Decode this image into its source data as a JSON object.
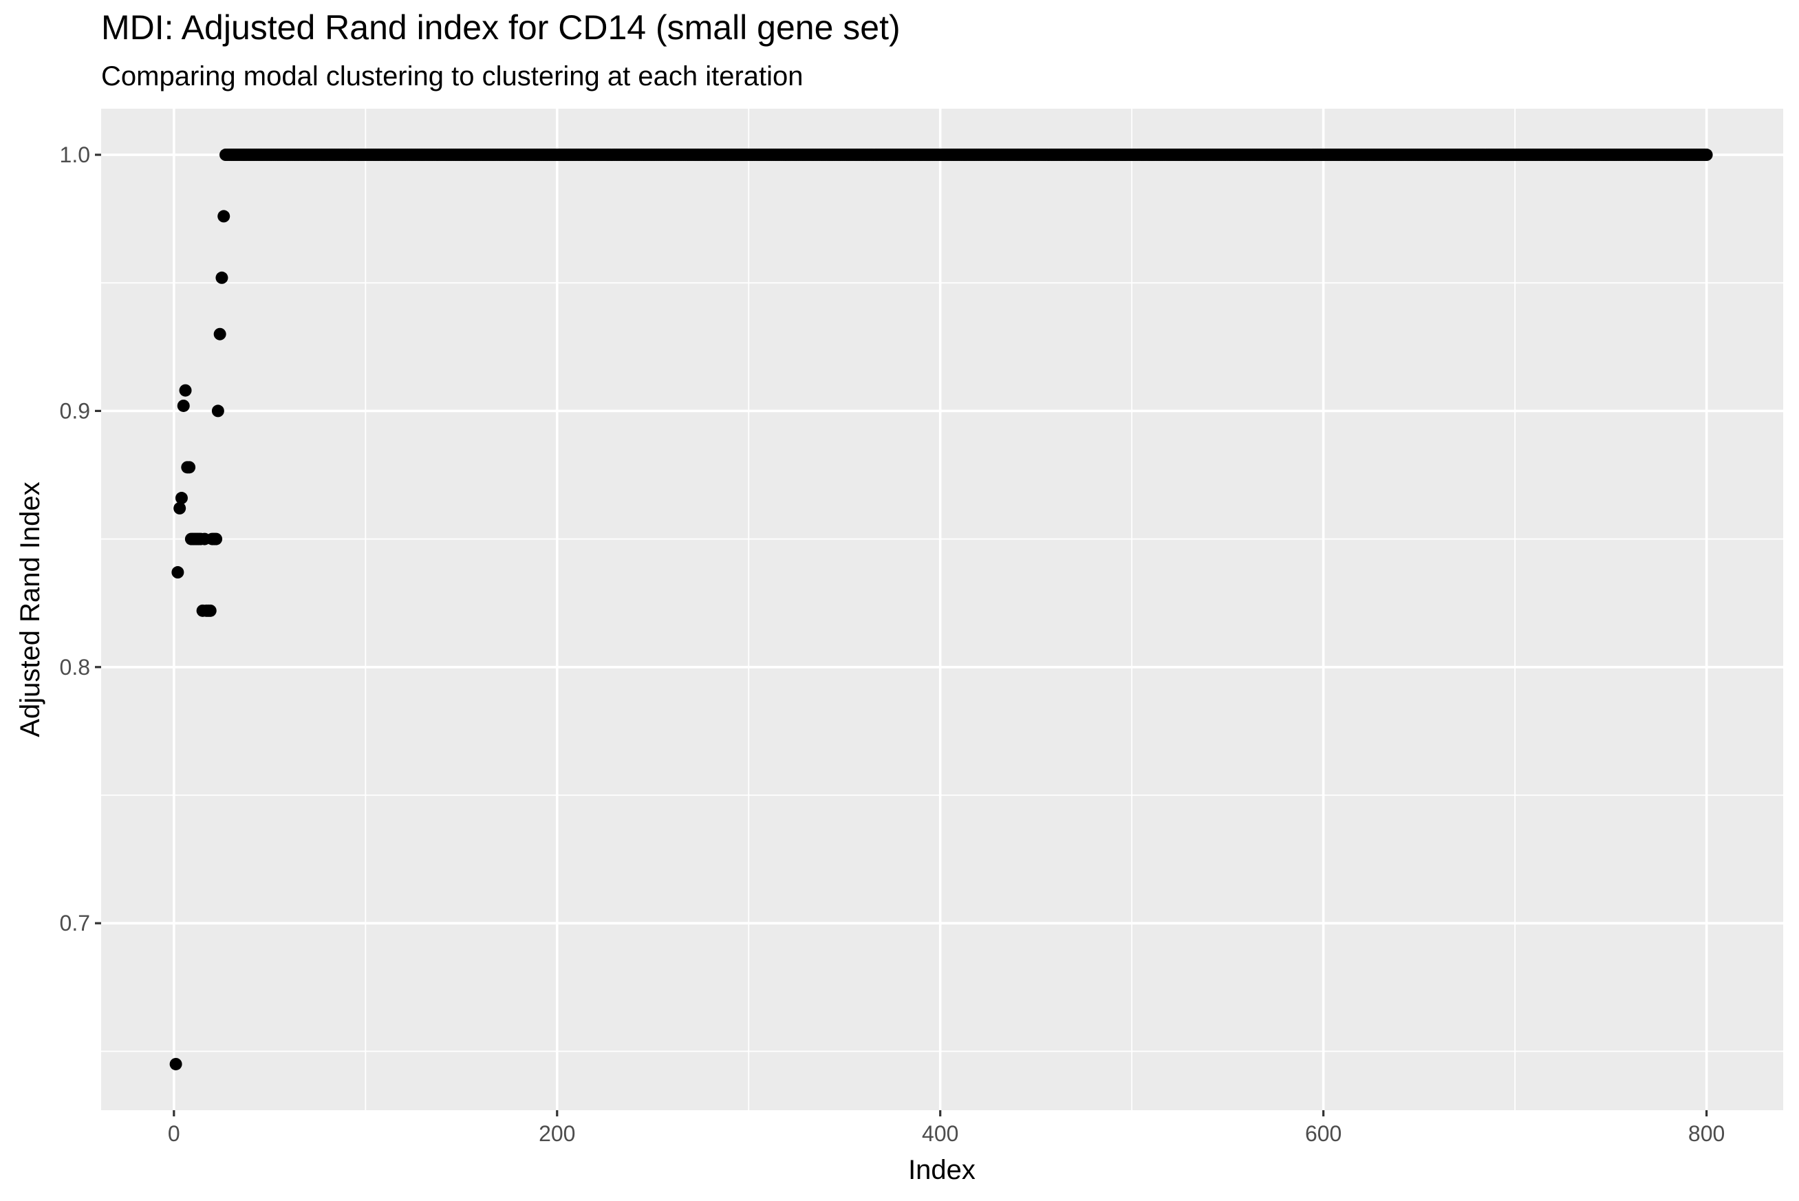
{
  "chart_data": {
    "type": "scatter",
    "title": "MDI: Adjusted Rand index for CD14 (small gene set)",
    "subtitle": "Comparing modal clustering to clustering at each iteration",
    "xlabel": "Index",
    "ylabel": "Adjusted Rand Index",
    "xlim": [
      -38,
      840
    ],
    "ylim": [
      0.627,
      1.018
    ],
    "x_ticks": [
      0,
      200,
      400,
      600,
      800
    ],
    "x_tick_labels": [
      "0",
      "200",
      "400",
      "600",
      "800"
    ],
    "x_minor_ticks": [
      100,
      300,
      500,
      700
    ],
    "y_ticks": [
      0.7,
      0.8,
      0.9,
      1.0
    ],
    "y_tick_labels": [
      "0.7",
      "0.8",
      "0.9",
      "1.0"
    ],
    "y_minor_ticks": [
      0.65,
      0.75,
      0.85,
      0.95
    ],
    "grid": true,
    "legend": "none",
    "point_color": "#000000",
    "background_color": "#ebebeb",
    "gridline_color": "#ffffff",
    "points": [
      {
        "x": 1,
        "y": 0.645
      },
      {
        "x": 2,
        "y": 0.837
      },
      {
        "x": 3,
        "y": 0.862
      },
      {
        "x": 4,
        "y": 0.866
      },
      {
        "x": 5,
        "y": 0.902
      },
      {
        "x": 6,
        "y": 0.908
      },
      {
        "x": 7,
        "y": 0.878
      },
      {
        "x": 8,
        "y": 0.878
      },
      {
        "x": 9,
        "y": 0.85
      },
      {
        "x": 10,
        "y": 0.85
      },
      {
        "x": 11,
        "y": 0.85
      },
      {
        "x": 12,
        "y": 0.85
      },
      {
        "x": 13,
        "y": 0.85
      },
      {
        "x": 14,
        "y": 0.85
      },
      {
        "x": 15,
        "y": 0.822
      },
      {
        "x": 16,
        "y": 0.85
      },
      {
        "x": 17,
        "y": 0.822
      },
      {
        "x": 18,
        "y": 0.822
      },
      {
        "x": 19,
        "y": 0.822
      },
      {
        "x": 20,
        "y": 0.85
      },
      {
        "x": 21,
        "y": 0.85
      },
      {
        "x": 22,
        "y": 0.85
      },
      {
        "x": 23,
        "y": 0.9
      },
      {
        "x": 24,
        "y": 0.93
      },
      {
        "x": 25,
        "y": 0.952
      },
      {
        "x": 26,
        "y": 0.976
      }
    ],
    "constant_run": {
      "x_start": 27,
      "x_end": 800,
      "y": 1.0
    }
  }
}
